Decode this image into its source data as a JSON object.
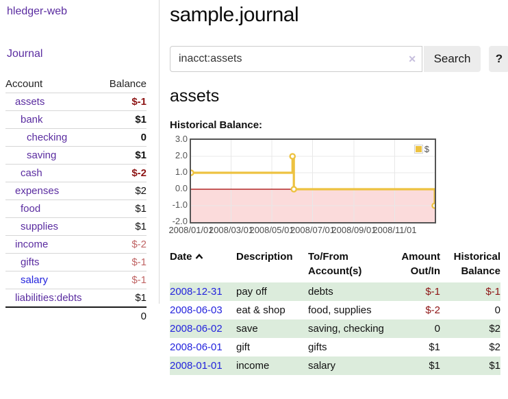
{
  "sidebar": {
    "brand": "hledger-web",
    "journal_link": "Journal",
    "accounts": {
      "header": {
        "account": "Account",
        "balance": "Balance"
      },
      "rows": [
        {
          "name": "assets",
          "balance": "$-1"
        },
        {
          "name": "bank",
          "balance": "$1"
        },
        {
          "name": "checking",
          "balance": "0"
        },
        {
          "name": "saving",
          "balance": "$1"
        },
        {
          "name": "cash",
          "balance": "$-2"
        },
        {
          "name": "expenses",
          "balance": "$2"
        },
        {
          "name": "food",
          "balance": "$1"
        },
        {
          "name": "supplies",
          "balance": "$1"
        },
        {
          "name": "income",
          "balance": "$-2"
        },
        {
          "name": "gifts",
          "balance": "$-1"
        },
        {
          "name": "salary",
          "balance": "$-1"
        },
        {
          "name": "liabilities:debts",
          "balance": "$1"
        }
      ],
      "total": "0"
    }
  },
  "main": {
    "title": "sample.journal",
    "search": {
      "value": "inacct:assets",
      "clear_icon": "✕",
      "search_button": "Search",
      "help_button": "?"
    },
    "account_heading": "assets",
    "chart_label": "Historical Balance:"
  },
  "register": {
    "headers": {
      "date": "Date",
      "description": "Description",
      "account_line1": "To/From",
      "account_line2": "Account(s)",
      "amount_line1": "Amount",
      "amount_line2": "Out/In",
      "balance_line1": "Historical",
      "balance_line2": "Balance"
    },
    "rows": [
      {
        "date": "2008-12-31",
        "description": "pay off",
        "account": "debts",
        "amount": "$-1",
        "balance": "$-1"
      },
      {
        "date": "2008-06-03",
        "description": "eat & shop",
        "account": "food, supplies",
        "amount": "$-2",
        "balance": "0"
      },
      {
        "date": "2008-06-02",
        "description": "save",
        "account": "saving, checking",
        "amount": "0",
        "balance": "$2"
      },
      {
        "date": "2008-06-01",
        "description": "gift",
        "account": "gifts",
        "amount": "$1",
        "balance": "$2"
      },
      {
        "date": "2008-01-01",
        "description": "income",
        "account": "salary",
        "amount": "$1",
        "balance": "$1"
      }
    ]
  },
  "chart_data": {
    "type": "line",
    "step": true,
    "title": "Historical Balance:",
    "x_range": [
      "2008-01-01",
      "2008-12-31"
    ],
    "ylim": [
      -2,
      3
    ],
    "y_tick_labels": [
      "3.0",
      "2.0",
      "1.0",
      "0.0",
      "-1.0",
      "-2.0"
    ],
    "y_tick_values": [
      3,
      2,
      1,
      0,
      -1,
      -2
    ],
    "x_tick_labels": [
      "2008/01/01",
      "2008/03/01",
      "2008/05/01",
      "2008/07/01",
      "2008/09/01",
      "2008/11/01"
    ],
    "x_tick_dates": [
      "2008-01-01",
      "2008-03-01",
      "2008-05-01",
      "2008-07-01",
      "2008-09-01",
      "2008-11-01"
    ],
    "grid": true,
    "grid_color": "#e8e8e8",
    "zero_line_color": "#a40000",
    "negative_fill": "#fbdbdb",
    "legend_position": "top-right",
    "series": [
      {
        "name": "$",
        "color": "#edc240",
        "points": [
          {
            "date": "2008-01-01",
            "value": 1
          },
          {
            "date": "2008-06-01",
            "value": 2
          },
          {
            "date": "2008-06-03",
            "value": 0
          },
          {
            "date": "2008-12-31",
            "value": -1
          }
        ]
      }
    ]
  }
}
